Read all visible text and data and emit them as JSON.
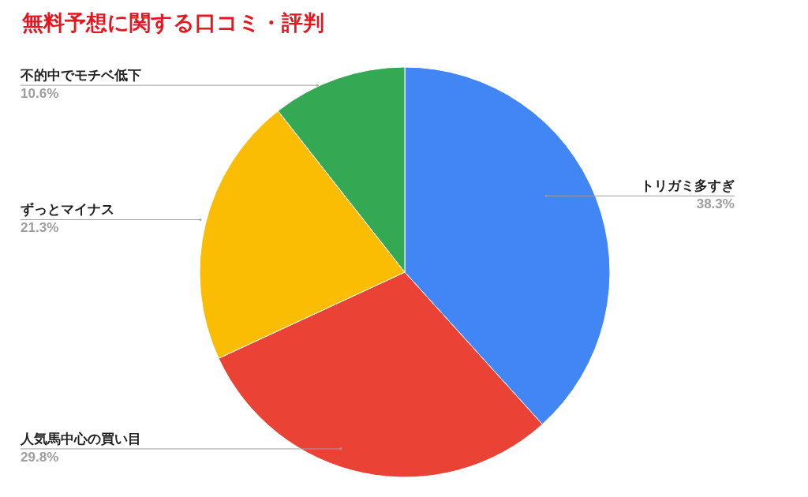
{
  "chart_data": {
    "type": "pie",
    "title": "無料予想に関する口コミ・評判",
    "categories": [
      "トリガミ多すぎ",
      "人気馬中心の買い目",
      "ずっとマイナス",
      "不的中でモチベ低下"
    ],
    "values": [
      38.3,
      29.8,
      21.3,
      10.6
    ],
    "colors": [
      "#4285f4",
      "#ea4335",
      "#fbbc04",
      "#34a853"
    ],
    "value_labels": [
      "38.3%",
      "29.8%",
      "21.3%",
      "10.6%"
    ]
  }
}
